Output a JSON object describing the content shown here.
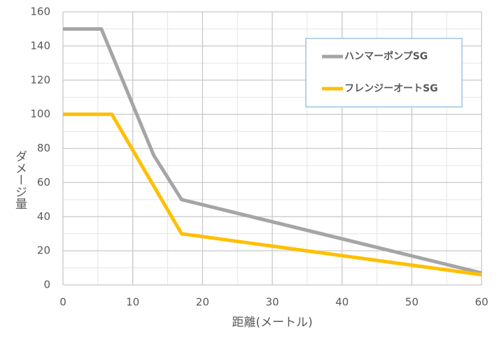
{
  "chart_data": {
    "type": "line",
    "xlabel": "距離(メートル)",
    "ylabel": "ダメージ量",
    "xlim": [
      0,
      60
    ],
    "xticks": [
      0,
      10,
      20,
      30,
      40,
      50,
      60
    ],
    "ylim": [
      0,
      160
    ],
    "yticks": [
      0,
      20,
      40,
      60,
      80,
      100,
      120,
      140,
      160
    ],
    "grid": true,
    "legend": "upper right",
    "series": [
      {
        "name": "ハンマーポンプSG",
        "color": "#a5a5a5",
        "x": [
          0,
          5.5,
          13,
          17,
          60
        ],
        "values": [
          150,
          150,
          76,
          50,
          7
        ]
      },
      {
        "name": "フレンジーオートSG",
        "color": "#ffc000",
        "x": [
          0,
          7,
          17,
          60
        ],
        "values": [
          100,
          100,
          30,
          6
        ]
      }
    ]
  }
}
